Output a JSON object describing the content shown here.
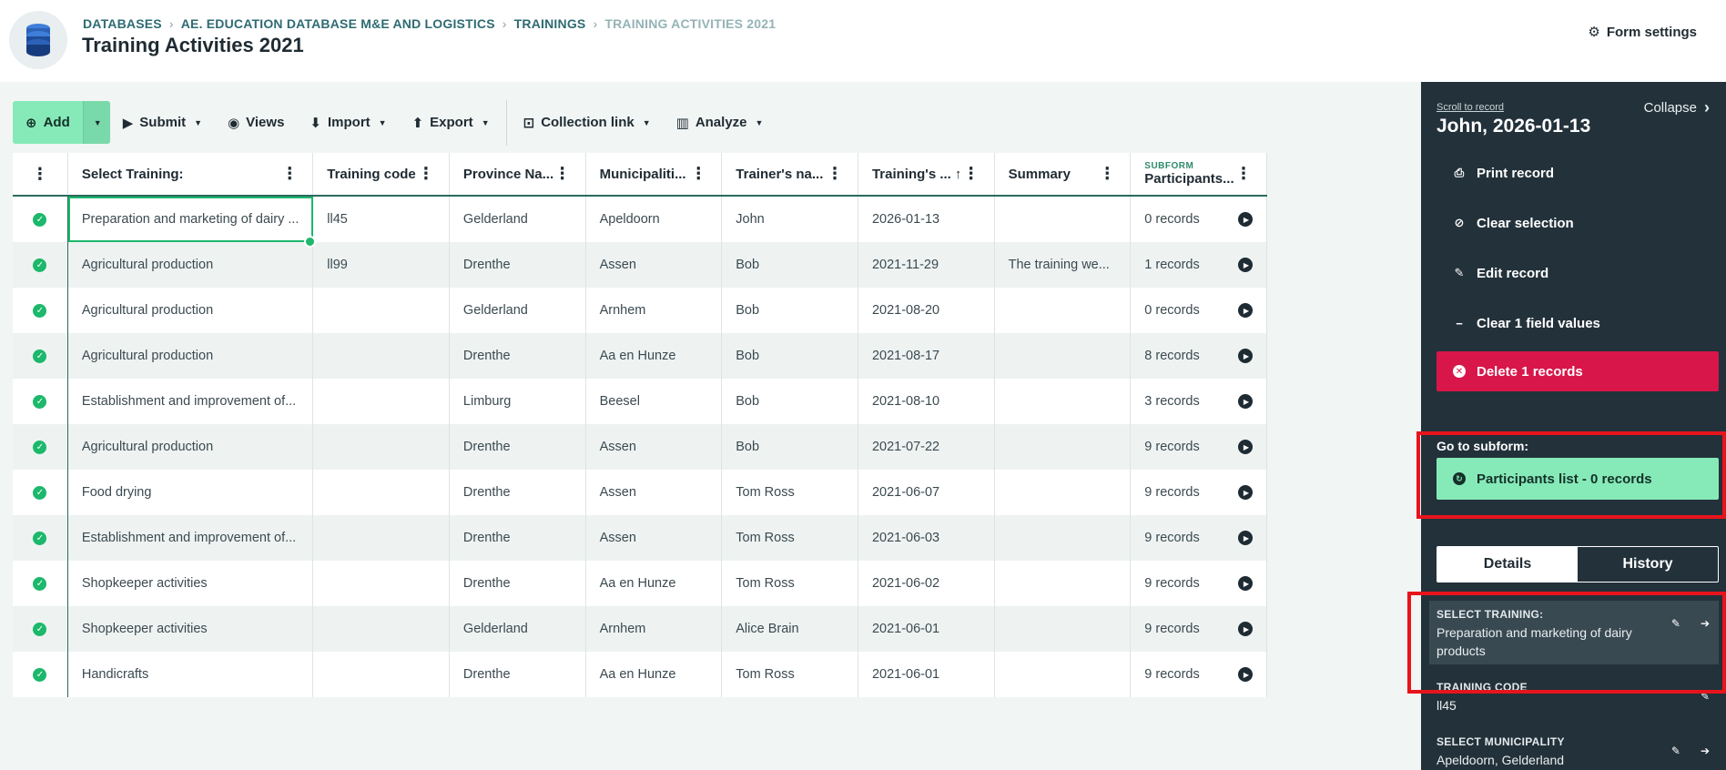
{
  "header": {
    "breadcrumb": [
      "DATABASES",
      "AE. EDUCATION DATABASE M&E AND LOGISTICS",
      "TRAININGS",
      "TRAINING ACTIVITIES 2021"
    ],
    "title": "Training Activities 2021",
    "form_settings": "Form settings"
  },
  "toolbar": {
    "add": "Add",
    "submit": "Submit",
    "views": "Views",
    "import": "Import",
    "export": "Export",
    "collection_link": "Collection link",
    "analyze": "Analyze"
  },
  "table": {
    "columns": [
      "Select Training:",
      "Training code",
      "Province Na...",
      "Municipaliti...",
      "Trainer's na...",
      "Training's ...",
      "Summary",
      "Participants..."
    ],
    "subform_tag": "SUBFORM",
    "rows": [
      [
        "Preparation and marketing of dairy ...",
        "ll45",
        "Gelderland",
        "Apeldoorn",
        "John",
        "2026-01-13",
        "",
        "0 records"
      ],
      [
        "Agricultural production",
        "ll99",
        "Drenthe",
        "Assen",
        "Bob",
        "2021-11-29",
        "The training we...",
        "1 records"
      ],
      [
        "Agricultural production",
        "",
        "Gelderland",
        "Arnhem",
        "Bob",
        "2021-08-20",
        "",
        "0 records"
      ],
      [
        "Agricultural production",
        "",
        "Drenthe",
        "Aa en Hunze",
        "Bob",
        "2021-08-17",
        "",
        "8 records"
      ],
      [
        "Establishment and improvement of...",
        "",
        "Limburg",
        "Beesel",
        "Bob",
        "2021-08-10",
        "",
        "3 records"
      ],
      [
        "Agricultural production",
        "",
        "Drenthe",
        "Assen",
        "Bob",
        "2021-07-22",
        "",
        "9 records"
      ],
      [
        "Food drying",
        "",
        "Drenthe",
        "Assen",
        "Tom Ross",
        "2021-06-07",
        "",
        "9 records"
      ],
      [
        "Establishment and improvement of...",
        "",
        "Drenthe",
        "Assen",
        "Tom Ross",
        "2021-06-03",
        "",
        "9 records"
      ],
      [
        "Shopkeeper activities",
        "",
        "Drenthe",
        "Aa en Hunze",
        "Tom Ross",
        "2021-06-02",
        "",
        "9 records"
      ],
      [
        "Shopkeeper activities",
        "",
        "Gelderland",
        "Arnhem",
        "Alice Brain",
        "2021-06-01",
        "",
        "9 records"
      ],
      [
        "Handicrafts",
        "",
        "Drenthe",
        "Aa en Hunze",
        "Tom Ross",
        "2021-06-01",
        "",
        "9 records"
      ]
    ]
  },
  "panel": {
    "scroll_link": "Scroll to record",
    "collapse": "Collapse",
    "record_title": "John, 2026-01-13",
    "actions": {
      "print": "Print record",
      "clear_selection": "Clear selection",
      "edit": "Edit record",
      "clear_values": "Clear 1 field values",
      "delete": "Delete 1 records"
    },
    "subform_label": "Go to subform:",
    "subform_button": "Participants list - 0 records",
    "tabs": [
      "Details",
      "History"
    ],
    "fields": [
      {
        "label": "SELECT TRAINING:",
        "value": "Preparation and marketing of dairy products"
      },
      {
        "label": "TRAINING CODE",
        "value": "ll45"
      },
      {
        "label": "SELECT MUNICIPALITY",
        "value": "Apeldoorn, Gelderland"
      }
    ]
  }
}
